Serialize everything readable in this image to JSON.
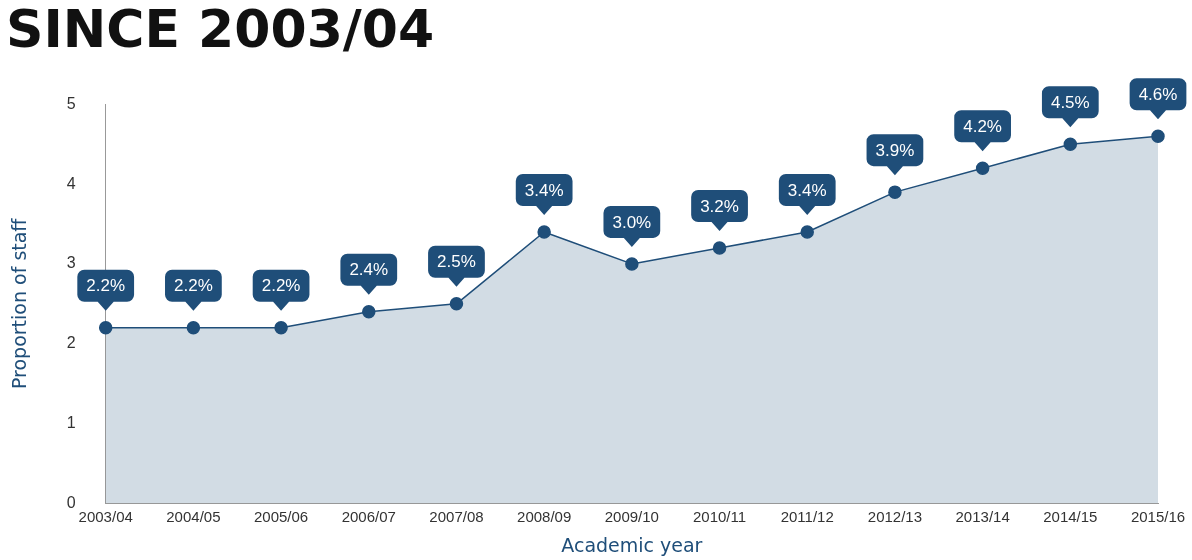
{
  "chart_data": {
    "type": "area",
    "title": "SINCE 2003/04",
    "xlabel": "Academic year",
    "ylabel": "Proportion of staff",
    "categories": [
      "2003/04",
      "2004/05",
      "2005/06",
      "2006/07",
      "2007/08",
      "2008/09",
      "2009/10",
      "2010/11",
      "2011/12",
      "2012/13",
      "2013/14",
      "2014/15",
      "2015/16"
    ],
    "series": [
      {
        "color": "#1f4e79",
        "values": [
          2.2,
          2.2,
          2.2,
          2.4,
          2.5,
          3.4,
          3.0,
          3.2,
          3.4,
          3.9,
          4.2,
          4.5,
          4.6
        ],
        "value_labels": [
          "2.2%",
          "2.2%",
          "2.2%",
          "2.4%",
          "2.5%",
          "3.4%",
          "3.0%",
          "3.2%",
          "3.4%",
          "3.9%",
          "4.2%",
          "4.5%",
          "4.6%"
        ]
      }
    ],
    "ylim": [
      0,
      5
    ],
    "yticks": [
      0,
      1,
      2,
      3,
      4,
      5
    ],
    "grid": false,
    "legend": false,
    "marker": "circle",
    "line_style": "solid"
  }
}
